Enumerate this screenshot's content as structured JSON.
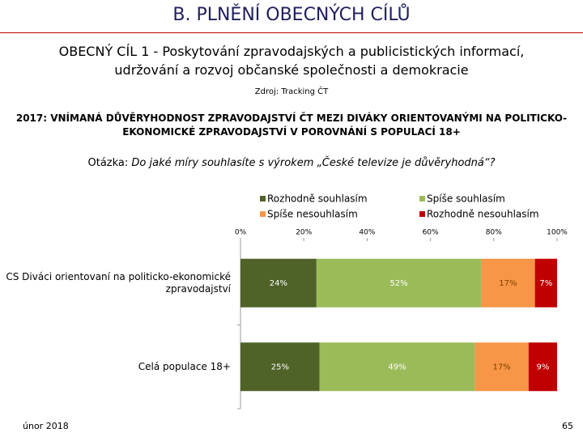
{
  "header": {
    "title": "B. PLNĚNÍ OBECNÝCH CÍLŮ",
    "subtitle": "OBECNÝ CÍL 1 - Poskytování zpravodajských a publicistických informací, udržování a rozvoj občanské společnosti a demokracie",
    "source": "Zdroj: Tracking ČT"
  },
  "question": {
    "label": "Otázka:",
    "text": "Do jaké míry souhlasíte s výrokem „České televize je důvěryhodná“?"
  },
  "chart_data": {
    "type": "bar",
    "orientation": "horizontal",
    "stacked": true,
    "title": "2017: VNÍMANÁ DŮVĚRYHODNOST ZPRAVODAJSTVÍ ČT MEZI DIVÁKY ORIENTOVANÝMI NA POLITICKO-EKONOMICKÉ ZPRAVODAJSTVÍ V POROVNÁNÍ S POPULACÍ 18+",
    "categories": [
      "CS Diváci orientovaní na politicko-ekonomické zpravodajství",
      "Celá populace 18+"
    ],
    "series": [
      {
        "name": "Rozhodně souhlasím",
        "color": "#4f6228",
        "values": [
          24,
          25
        ],
        "value_labels": [
          "24%",
          "25%"
        ]
      },
      {
        "name": "Spíše souhlasím",
        "color": "#9bbb59",
        "values": [
          52,
          49
        ],
        "value_labels": [
          "52%",
          "49%"
        ]
      },
      {
        "name": "Spíše nesouhlasím",
        "color": "#f79646",
        "values": [
          17,
          17
        ],
        "value_labels": [
          "17%",
          "17%"
        ]
      },
      {
        "name": "Rozhodně nesouhlasím",
        "color": "#c00000",
        "values": [
          7,
          9
        ],
        "value_labels": [
          "7%",
          "9%"
        ]
      }
    ],
    "xlim": [
      0,
      100
    ],
    "xticks": [
      {
        "value": 0,
        "label": "0%"
      },
      {
        "value": 20,
        "label": "20%"
      },
      {
        "value": 40,
        "label": "40%"
      },
      {
        "value": 60,
        "label": "60%"
      },
      {
        "value": 80,
        "label": "80%"
      },
      {
        "value": 100,
        "label": "100%"
      }
    ],
    "legend": "top"
  },
  "footer": {
    "date": "únor 2018",
    "page": "65"
  }
}
